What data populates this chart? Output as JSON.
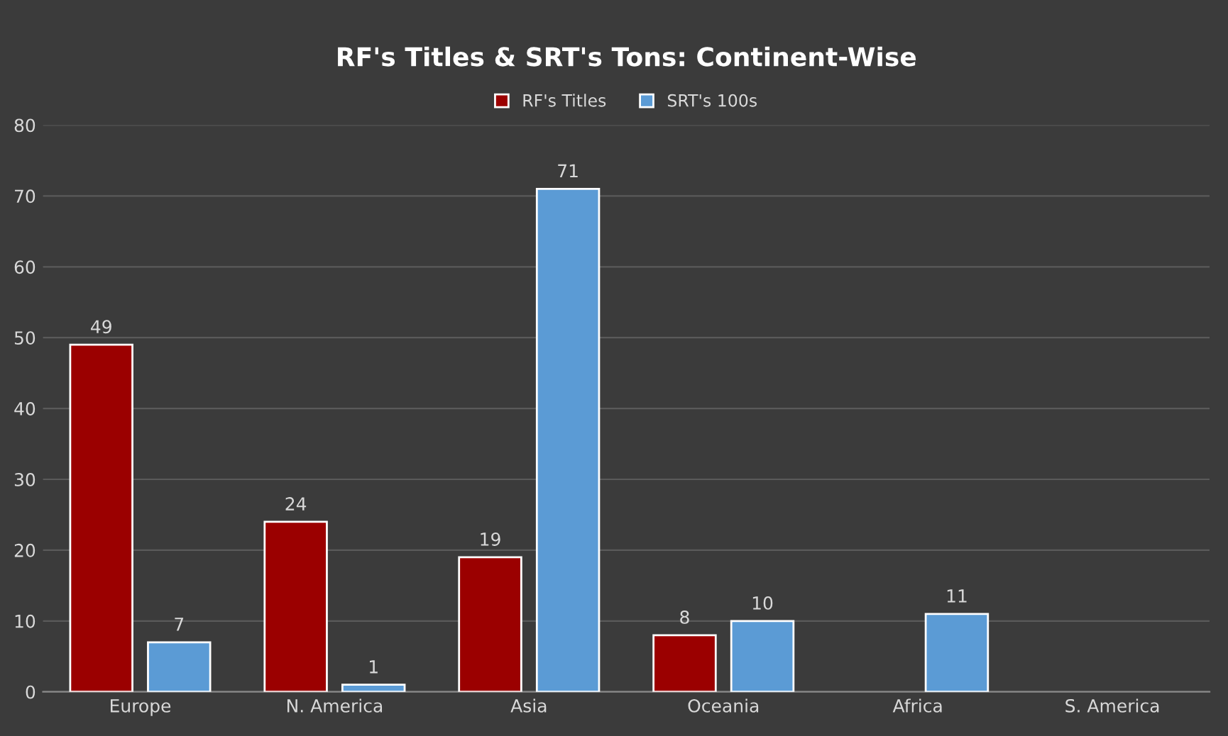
{
  "chart_data": {
    "type": "bar",
    "title": "RF's Titles & SRT's Tons: Continent-Wise",
    "categories": [
      "Europe",
      "N. America",
      "Asia",
      "Oceania",
      "Africa",
      "S. America"
    ],
    "series": [
      {
        "name": "RF's Titles",
        "color": "#9b0000",
        "values": [
          49,
          24,
          19,
          8,
          null,
          null
        ]
      },
      {
        "name": "SRT's 100s",
        "color": "#5b9bd5",
        "values": [
          7,
          1,
          71,
          10,
          11,
          null
        ]
      }
    ],
    "ylim": [
      0,
      80
    ],
    "yticks": [
      0,
      10,
      20,
      30,
      40,
      50,
      60,
      70,
      80
    ],
    "grid": "y",
    "legend": "top",
    "data_labels": true
  }
}
